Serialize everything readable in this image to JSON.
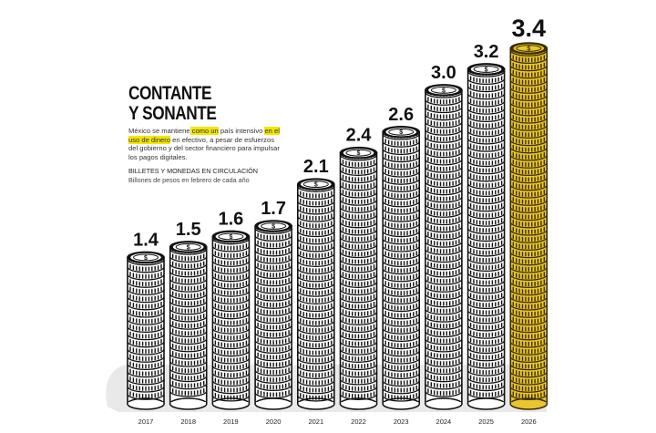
{
  "header": {
    "title_line1": "CONTANTE",
    "title_line2": "Y SONANTE",
    "body_pre": "México se mantiene",
    "body_mid1": " como un",
    "body_mid2": " país intensivo ",
    "body_hl": "en el uso de dinero",
    "body_post": " en efectivo, a pesar de esfuerzos del gobierno y del sector financiero para impulsar los pagos digitales."
  },
  "colors": {
    "coin_fill": "#ffffff",
    "coin_edge": "#111111",
    "coin_stripe": "#ffffff",
    "highlight_fill": "#e9c530",
    "highlight_edge": "#3a2e00",
    "highlight_text": "#f3e600",
    "shadow": "#d7d7d7"
  },
  "icons": {
    "coin_face": "peso-sign-icon"
  },
  "chart_data": {
    "type": "bar",
    "title": "BILLETES Y MONEDAS EN CIRCULACIÓN",
    "subtitle": "Billones de pesos en febrero de cada año",
    "categories": [
      "2017",
      "2018",
      "2019",
      "2020",
      "2021",
      "2022",
      "2023",
      "2024",
      "2025",
      "2026"
    ],
    "values": [
      1.4,
      1.5,
      1.6,
      1.7,
      2.1,
      2.4,
      2.6,
      3.0,
      3.2,
      3.4
    ],
    "value_labels": [
      "1.4",
      "1.5",
      "1.6",
      "1.7",
      "2.1",
      "2.4",
      "2.6",
      "3.0",
      "3.2",
      "3.4"
    ],
    "highlight_index": 9,
    "ylim": [
      0,
      3.4
    ],
    "grid": false,
    "legend": "none",
    "mark": "coin-stack"
  }
}
